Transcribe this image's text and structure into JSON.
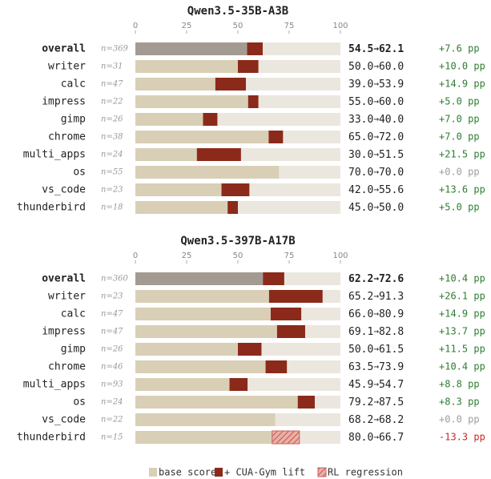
{
  "chart_data": [
    {
      "type": "bar",
      "title": "Qwen3.5-35B-A3B",
      "xlim": [
        0,
        100
      ],
      "xticks": [
        0,
        25,
        50,
        75,
        100
      ],
      "categories": [
        "overall",
        "writer",
        "calc",
        "impress",
        "gimp",
        "chrome",
        "multi_apps",
        "os",
        "vs_code",
        "thunderbird"
      ],
      "n_labels": [
        "n=369",
        "n=31",
        "n=47",
        "n=22",
        "n=26",
        "n=38",
        "n=24",
        "n=55",
        "n=23",
        "n=18"
      ],
      "series": [
        {
          "values": [
            54.5,
            50,
            39,
            55,
            33,
            65,
            30,
            70,
            42,
            45
          ],
          "value_labels": [
            "54.5",
            "50.0",
            "39.0",
            "55.0",
            "33.0",
            "65.0",
            "30.0",
            "70.0",
            "42.0",
            "45.0"
          ]
        },
        {
          "values": [
            7.6,
            10,
            14.9,
            5,
            7,
            7,
            21.5,
            0,
            13.6,
            5
          ],
          "value_labels": [
            "+7.6 pp",
            "+10.0 pp",
            "+14.9 pp",
            "+5.0 pp",
            "+7.0 pp",
            "+7.0 pp",
            "+21.5 pp",
            "+0.0 pp",
            "+13.6 pp",
            "+5.0 pp"
          ]
        }
      ],
      "final_labels": [
        "62.1",
        "60.0",
        "53.9",
        "60.0",
        "40.0",
        "72.0",
        "51.5",
        "70.0",
        "55.6",
        "50.0"
      ]
    },
    {
      "type": "bar",
      "title": "Qwen3.5-397B-A17B",
      "xlim": [
        0,
        100
      ],
      "xticks": [
        0,
        25,
        50,
        75,
        100
      ],
      "categories": [
        "overall",
        "writer",
        "calc",
        "impress",
        "gimp",
        "chrome",
        "multi_apps",
        "os",
        "vs_code",
        "thunderbird"
      ],
      "n_labels": [
        "n=360",
        "n=23",
        "n=47",
        "n=47",
        "n=26",
        "n=46",
        "n=93",
        "n=24",
        "n=22",
        "n=15"
      ],
      "series": [
        {
          "values": [
            62.2,
            65.2,
            66,
            69.1,
            50,
            63.5,
            45.9,
            79.2,
            68.2,
            80
          ],
          "value_labels": [
            "62.2",
            "65.2",
            "66.0",
            "69.1",
            "50.0",
            "63.5",
            "45.9",
            "79.2",
            "68.2",
            "80.0"
          ]
        },
        {
          "values": [
            10.4,
            26.1,
            14.9,
            13.7,
            11.5,
            10.4,
            8.8,
            8.3,
            0,
            -13.3
          ],
          "value_labels": [
            "+10.4 pp",
            "+26.1 pp",
            "+14.9 pp",
            "+13.7 pp",
            "+11.5 pp",
            "+10.4 pp",
            "+8.8 pp",
            "+8.3 pp",
            "+0.0 pp",
            "-13.3 pp"
          ]
        }
      ],
      "final_labels": [
        "72.6",
        "91.3",
        "80.9",
        "82.8",
        "61.5",
        "73.9",
        "54.7",
        "87.5",
        "68.2",
        "66.7"
      ]
    }
  ],
  "arrow": "→",
  "overall_color": "#a39b92",
  "track_color": "#ebe7df",
  "lift_colors": {
    "positive": "#2e7d32",
    "zero": "#9e9e9e",
    "negative": "#c62828"
  },
  "legend": [
    {
      "name": "base score",
      "color": "#d9cfb6"
    },
    {
      "name": "+ CUA-Gym lift",
      "color": "#8b2a1a"
    },
    {
      "name": "RL regression",
      "color": "#c9625a"
    }
  ]
}
